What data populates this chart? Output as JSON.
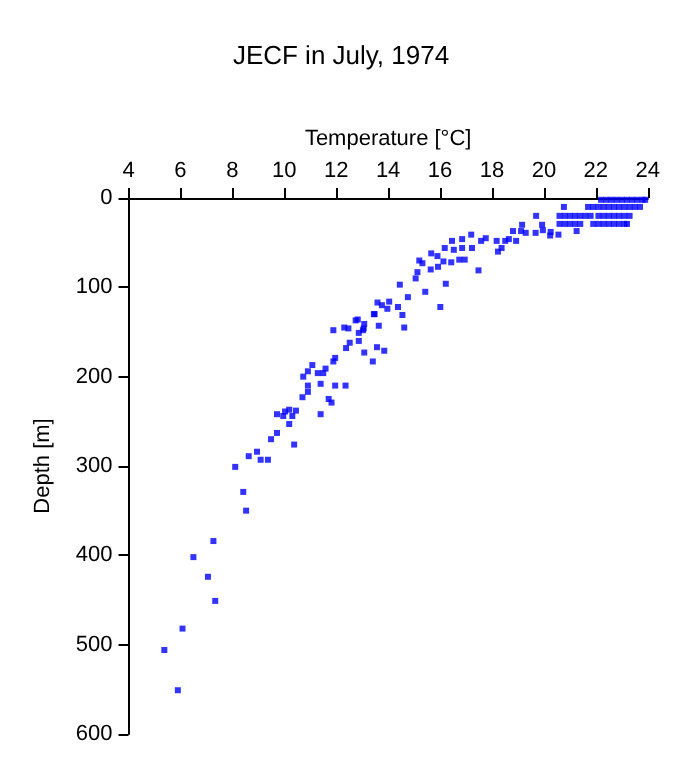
{
  "chart_data": {
    "type": "scatter",
    "title": "JECF in July, 1974",
    "xlabel": "Temperature [°C]",
    "ylabel": "Depth [m]",
    "xlim": [
      4,
      24
    ],
    "xticks": [
      4,
      6,
      8,
      10,
      12,
      14,
      16,
      18,
      20,
      22,
      24
    ],
    "ylim": [
      600,
      0
    ],
    "yticks": [
      0,
      100,
      200,
      300,
      400,
      500,
      600
    ],
    "grid": false,
    "marker": "square",
    "series": [
      {
        "color": "#0000ff",
        "x": [
          8.42,
          8.53,
          7.27,
          6.5,
          7.06,
          7.34,
          6.08,
          5.38,
          5.9,
          8.11,
          8.63,
          8.95,
          9.09,
          9.37,
          9.49,
          9.72,
          10.38,
          10.19,
          9.72,
          9.96,
          10.03,
          10.19,
          10.31,
          10.45,
          10.7,
          10.91,
          11.4,
          11.71,
          11.82,
          10.91,
          11.4,
          11.96,
          12.36,
          10.73,
          10.91,
          11.08,
          11.29,
          11.5,
          11.59,
          11.89,
          11.96,
          11.89,
          12.31,
          12.47,
          12.52,
          12.38,
          12.83,
          12.87,
          13.08,
          13.08,
          13.64,
          13.57,
          13.85,
          13.41,
          13.45,
          13.59,
          13.76,
          13.97,
          13.03,
          14.62,
          14.55,
          12.87,
          13.06,
          12.75,
          13.48,
          14.04,
          14.38,
          14.76,
          16.01,
          15.43,
          16.22,
          14.45,
          15.06,
          15.13,
          15.2,
          15.32,
          15.64,
          15.92,
          16.13,
          16.43,
          16.74,
          16.95,
          15.66,
          15.9,
          16.18,
          16.53,
          16.85,
          16.85,
          17.23,
          17.48,
          16.46,
          17.2,
          17.58,
          17.76,
          18.18,
          18.23,
          18.37,
          18.51,
          18.65,
          18.93,
          18.81,
          19.12,
          19.3,
          19.16,
          19.68,
          19.96,
          20.26,
          20.56,
          20.24,
          19.93,
          19.7,
          20.77,
          21.26,
          22.2,
          22.4,
          22.6,
          22.8,
          23.0,
          23.2,
          23.4,
          23.6,
          23.8,
          23.9,
          21.7,
          21.9,
          22.1,
          22.3,
          22.5,
          22.7,
          22.9,
          23.1,
          23.3,
          23.5,
          23.7,
          20.6,
          20.8,
          21.0,
          21.2,
          21.4,
          21.6,
          21.8,
          22.1,
          22.3,
          22.5,
          22.7,
          22.9,
          23.1,
          23.3,
          20.6,
          20.8,
          21.0,
          21.2,
          21.4,
          21.9,
          22.1,
          22.3,
          22.5,
          22.7,
          22.9,
          23.1,
          23.2
        ],
        "values": [
          329,
          350,
          384,
          402,
          424,
          451,
          482,
          506,
          551,
          301,
          289,
          284,
          293,
          293,
          270,
          263,
          276,
          253,
          242,
          244,
          239,
          237,
          244,
          238,
          223,
          217,
          242,
          225,
          229,
          210,
          208,
          210,
          210,
          200,
          194,
          187,
          196,
          196,
          191,
          183,
          179,
          148,
          145,
          146,
          162,
          168,
          136,
          160,
          141,
          173,
          143,
          167,
          171,
          183,
          130,
          117,
          120,
          124,
          148,
          145,
          131,
          151,
          146,
          137,
          130,
          116,
          122,
          111,
          122,
          105,
          96,
          97,
          90,
          83,
          70,
          73,
          80,
          77,
          71,
          72,
          69,
          69,
          62,
          65,
          56,
          58,
          56,
          46,
          56,
          81,
          48,
          41,
          48,
          45,
          48,
          60,
          56,
          48,
          46,
          48,
          37,
          37,
          39,
          30,
          39,
          36,
          38,
          41,
          42,
          30,
          20,
          10,
          37,
          2,
          2,
          2,
          2,
          2,
          2,
          2,
          2,
          2,
          2,
          10,
          10,
          10,
          10,
          10,
          10,
          10,
          10,
          10,
          10,
          10,
          20,
          20,
          20,
          20,
          20,
          20,
          20,
          20,
          20,
          20,
          20,
          20,
          20,
          20,
          29,
          29,
          29,
          29,
          29,
          29,
          29,
          29,
          29,
          29,
          29,
          29,
          29
        ]
      }
    ]
  }
}
